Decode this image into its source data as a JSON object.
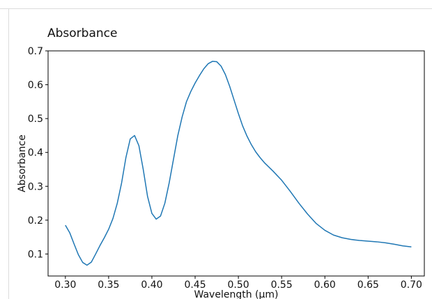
{
  "page": {
    "title": "Absorbance"
  },
  "chart_data": {
    "type": "line",
    "title": "Absorbance",
    "xlabel": "Wavelength (µm)",
    "ylabel": "Absorbance",
    "xlim": [
      0.28,
      0.715
    ],
    "ylim": [
      0.035,
      0.7
    ],
    "xticks": [
      0.3,
      0.35,
      0.4,
      0.45,
      0.5,
      0.55,
      0.6,
      0.65,
      0.7
    ],
    "xtick_labels": [
      "0.30",
      "0.35",
      "0.40",
      "0.45",
      "0.50",
      "0.55",
      "0.60",
      "0.65",
      "0.70"
    ],
    "yticks": [
      0.1,
      0.2,
      0.3,
      0.4,
      0.5,
      0.6,
      0.7
    ],
    "ytick_labels": [
      "0.1",
      "0.2",
      "0.3",
      "0.4",
      "0.5",
      "0.6",
      "0.7"
    ],
    "grid": false,
    "colors": {
      "line": "#1f77b4"
    },
    "series": [
      {
        "x": [
          0.3,
          0.305,
          0.31,
          0.315,
          0.32,
          0.325,
          0.33,
          0.335,
          0.34,
          0.345,
          0.35,
          0.355,
          0.36,
          0.365,
          0.37,
          0.375,
          0.38,
          0.385,
          0.39,
          0.395,
          0.4,
          0.405,
          0.41,
          0.415,
          0.42,
          0.425,
          0.43,
          0.435,
          0.44,
          0.445,
          0.45,
          0.455,
          0.46,
          0.465,
          0.47,
          0.475,
          0.48,
          0.485,
          0.49,
          0.495,
          0.5,
          0.505,
          0.51,
          0.515,
          0.52,
          0.525,
          0.53,
          0.54,
          0.55,
          0.56,
          0.57,
          0.58,
          0.59,
          0.6,
          0.61,
          0.62,
          0.63,
          0.64,
          0.65,
          0.66,
          0.67,
          0.68,
          0.69,
          0.7
        ],
        "y": [
          0.185,
          0.163,
          0.13,
          0.098,
          0.075,
          0.067,
          0.076,
          0.1,
          0.125,
          0.148,
          0.173,
          0.205,
          0.25,
          0.31,
          0.385,
          0.44,
          0.45,
          0.42,
          0.35,
          0.27,
          0.22,
          0.203,
          0.212,
          0.25,
          0.31,
          0.38,
          0.45,
          0.505,
          0.55,
          0.58,
          0.605,
          0.627,
          0.647,
          0.662,
          0.669,
          0.668,
          0.655,
          0.63,
          0.595,
          0.555,
          0.515,
          0.478,
          0.448,
          0.423,
          0.402,
          0.385,
          0.37,
          0.345,
          0.318,
          0.285,
          0.25,
          0.218,
          0.19,
          0.17,
          0.156,
          0.148,
          0.143,
          0.14,
          0.138,
          0.136,
          0.133,
          0.129,
          0.124,
          0.121
        ]
      }
    ]
  }
}
